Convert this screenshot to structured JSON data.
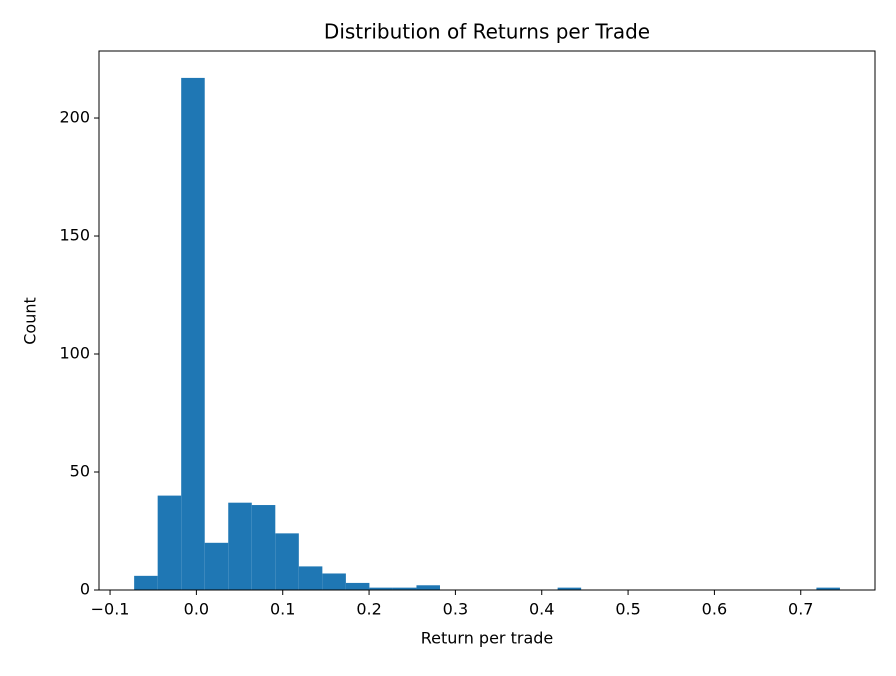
{
  "chart_data": {
    "type": "histogram",
    "title": "Distribution of Returns per Trade",
    "x_label": "Return per trade",
    "y_label": "Count",
    "color": "#1f77b4",
    "bins": [
      -0.0721,
      -0.04485,
      -0.0176,
      0.00965,
      0.0369,
      0.06415,
      0.0914,
      0.11865,
      0.1459,
      0.17315,
      0.2004,
      0.22765,
      0.2549,
      0.28215,
      0.3094,
      0.33665,
      0.3639,
      0.39115,
      0.4184,
      0.44565,
      0.4729,
      0.50015,
      0.5274,
      0.55465,
      0.5819,
      0.60915,
      0.6364,
      0.66365,
      0.6909,
      0.71815,
      0.7454
    ],
    "values": [
      6,
      40,
      217,
      20,
      37,
      36,
      24,
      10,
      7,
      3,
      1,
      1,
      2,
      0,
      0,
      0,
      0,
      0,
      1,
      0,
      0,
      0,
      0,
      0,
      0,
      0,
      0,
      0,
      0,
      1
    ],
    "xlim": [
      -0.1128,
      0.786
    ],
    "ylim": [
      0,
      228.4
    ],
    "xticks": [
      {
        "value": -0.1,
        "label": "−0.1"
      },
      {
        "value": 0,
        "label": "0.0"
      },
      0.1,
      0.2,
      0.3,
      0.4,
      0.5,
      0.6,
      0.7
    ],
    "yticks": [
      0,
      50,
      100,
      150,
      200
    ]
  }
}
